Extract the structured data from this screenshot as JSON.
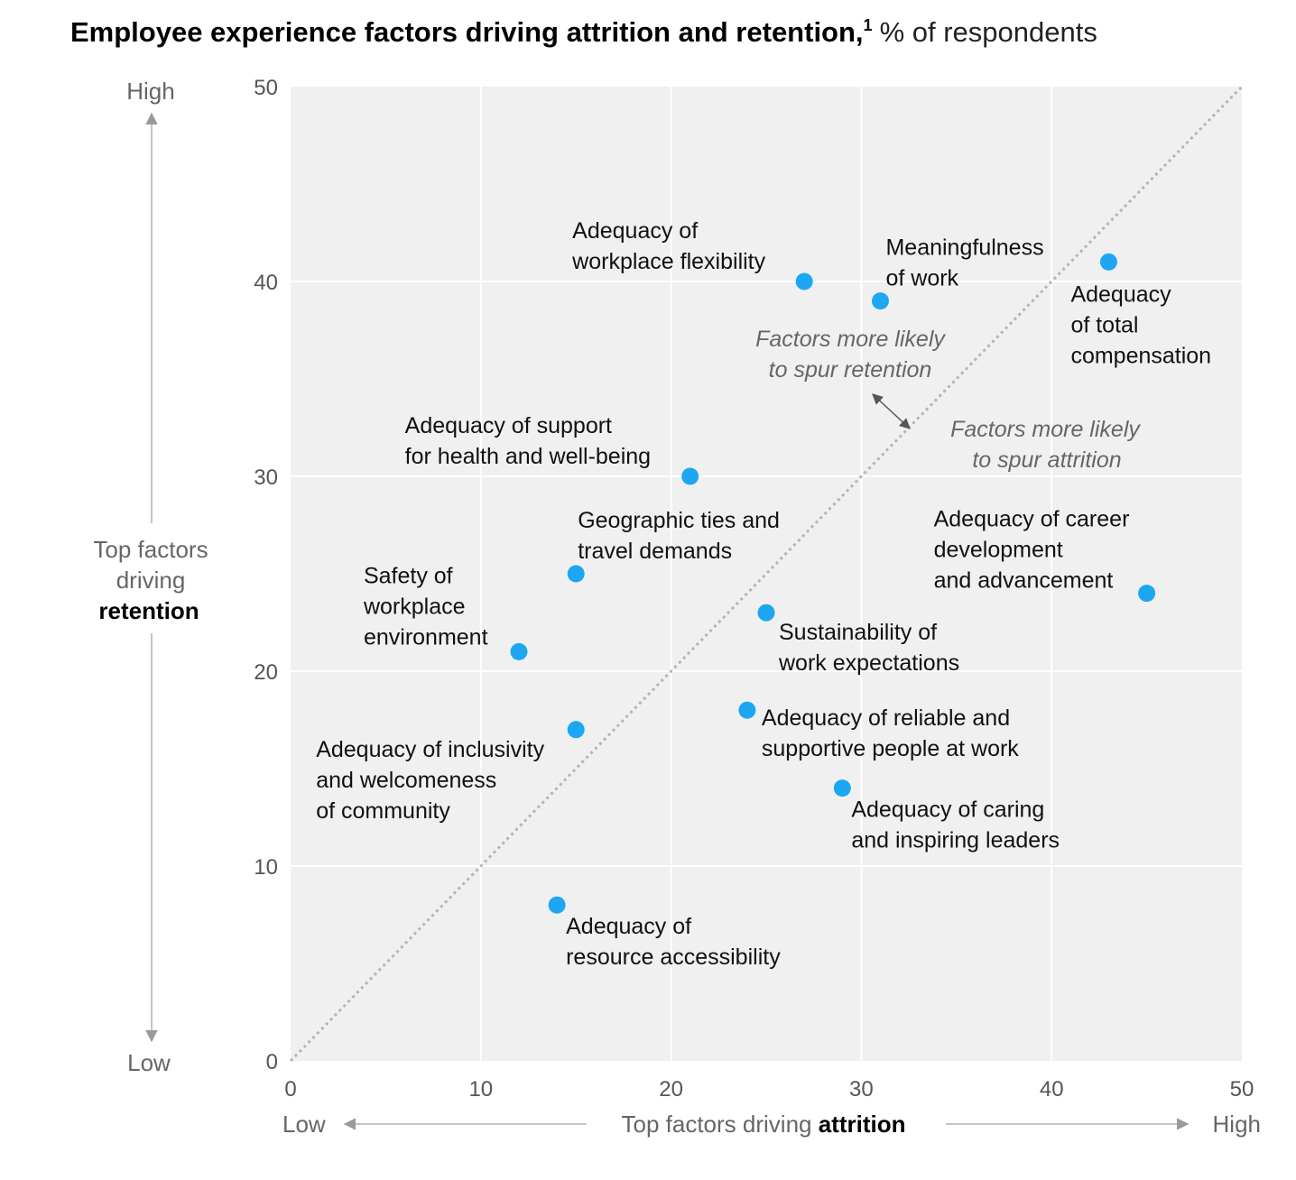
{
  "chart_data": {
    "type": "scatter",
    "title": "Employee experience factors driving attrition and retention,",
    "title_footnote": "1",
    "subtitle": "% of respondents",
    "x_axis": {
      "label_prefix": "Top factors driving ",
      "label_bold": "attrition",
      "low_label": "Low",
      "high_label": "High",
      "range": [
        0,
        50
      ],
      "ticks": [
        "0",
        "10",
        "20",
        "30",
        "40",
        "50"
      ]
    },
    "y_axis": {
      "label_lines": [
        "Top factors",
        "driving"
      ],
      "label_bold": "retention",
      "low_label": "Low",
      "high_label": "High",
      "range": [
        0,
        50
      ],
      "ticks": [
        "0",
        "10",
        "20",
        "30",
        "40",
        "50"
      ]
    },
    "grid": true,
    "point_color": "#1DA7F2",
    "diagonal_reference_line": true,
    "points": [
      {
        "name": "Adequacy of workplace flexibility",
        "label_lines": [
          "Adequacy of",
          "workplace flexibility"
        ],
        "x": 27,
        "y": 40
      },
      {
        "name": "Meaningfulness of work",
        "label_lines": [
          "Meaningfulness",
          "of work"
        ],
        "x": 31,
        "y": 39
      },
      {
        "name": "Adequacy of total compensation",
        "label_lines": [
          "Adequacy",
          "of total",
          "compensation"
        ],
        "x": 43,
        "y": 41
      },
      {
        "name": "Adequacy of support for health and well-being",
        "label_lines": [
          "Adequacy of support",
          "for health and well-being"
        ],
        "x": 21,
        "y": 30
      },
      {
        "name": "Geographic ties and travel demands",
        "label_lines": [
          "Geographic ties and",
          "travel demands"
        ],
        "x": 15,
        "y": 25
      },
      {
        "name": "Safety of workplace environment",
        "label_lines": [
          "Safety of",
          "workplace",
          "environment"
        ],
        "x": 12,
        "y": 21
      },
      {
        "name": "Adequacy of career development and advancement",
        "label_lines": [
          "Adequacy of career",
          "development",
          "and advancement"
        ],
        "x": 45,
        "y": 24
      },
      {
        "name": "Sustainability of work expectations",
        "label_lines": [
          "Sustainability of",
          "work expectations"
        ],
        "x": 25,
        "y": 23
      },
      {
        "name": "Adequacy of inclusivity and welcomeness of community",
        "label_lines": [
          "Adequacy of inclusivity",
          "and welcomeness",
          "of community"
        ],
        "x": 15,
        "y": 17
      },
      {
        "name": "Adequacy of reliable and supportive people at work",
        "label_lines": [
          "Adequacy of reliable and",
          "supportive people at work"
        ],
        "x": 24,
        "y": 18
      },
      {
        "name": "Adequacy of caring and inspiring leaders",
        "label_lines": [
          "Adequacy of caring",
          "and inspiring leaders"
        ],
        "x": 29,
        "y": 14
      },
      {
        "name": "Adequacy of resource accessibility",
        "label_lines": [
          "Adequacy of",
          "resource accessibility"
        ],
        "x": 14,
        "y": 8
      }
    ],
    "annotations": [
      {
        "name": "retention-note",
        "lines": [
          "Factors more likely",
          "to spur retention"
        ]
      },
      {
        "name": "attrition-note",
        "lines": [
          "Factors more likely",
          "to spur attrition"
        ]
      }
    ]
  }
}
